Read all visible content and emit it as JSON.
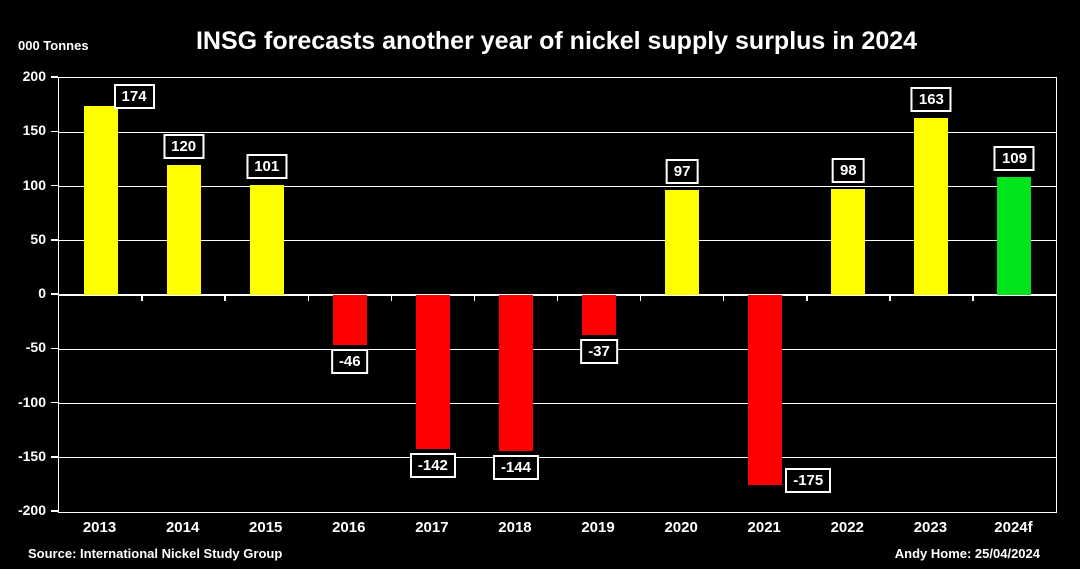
{
  "chart_data": {
    "type": "bar",
    "title": "INSG forecasts another year of nickel supply surplus in 2024",
    "ylabel": "000 Tonnes",
    "xlabel": "",
    "ylim": [
      -200,
      200
    ],
    "ytick_step": 50,
    "yticks": [
      200,
      150,
      100,
      50,
      0,
      -50,
      -100,
      -150,
      -200
    ],
    "grid": true,
    "legend": false,
    "categories": [
      "2013",
      "2014",
      "2015",
      "2016",
      "2017",
      "2018",
      "2019",
      "2020",
      "2021",
      "2022",
      "2023",
      "2024f"
    ],
    "values": [
      174,
      120,
      101,
      -46,
      -142,
      -144,
      -37,
      97,
      -175,
      98,
      163,
      109
    ],
    "point_colors": [
      "#ffff00",
      "#ffff00",
      "#ffff00",
      "#ff0000",
      "#ff0000",
      "#ff0000",
      "#ff0000",
      "#ffff00",
      "#ff0000",
      "#ffff00",
      "#ffff00",
      "#00e41e"
    ],
    "value_labels": [
      "174",
      "120",
      "101",
      "-46",
      "-142",
      "-144",
      "-37",
      "97",
      "-175",
      "98",
      "163",
      "109"
    ],
    "label_placements": [
      "above-right",
      "above",
      "above",
      "below",
      "below",
      "below",
      "below",
      "above",
      "right",
      "above",
      "above",
      "above"
    ]
  },
  "footer": {
    "source": "Source: International Nickel Study Group",
    "credit": "Andy Home: 25/04/2024"
  },
  "colors": {
    "background": "#000000",
    "axis": "#ffffff",
    "text": "#ffffff",
    "surplus_bar": "#ffff00",
    "deficit_bar": "#ff0000",
    "forecast_bar": "#00e41e",
    "value_label_box_bg": "#000000",
    "value_label_box_border": "#ffffff"
  }
}
